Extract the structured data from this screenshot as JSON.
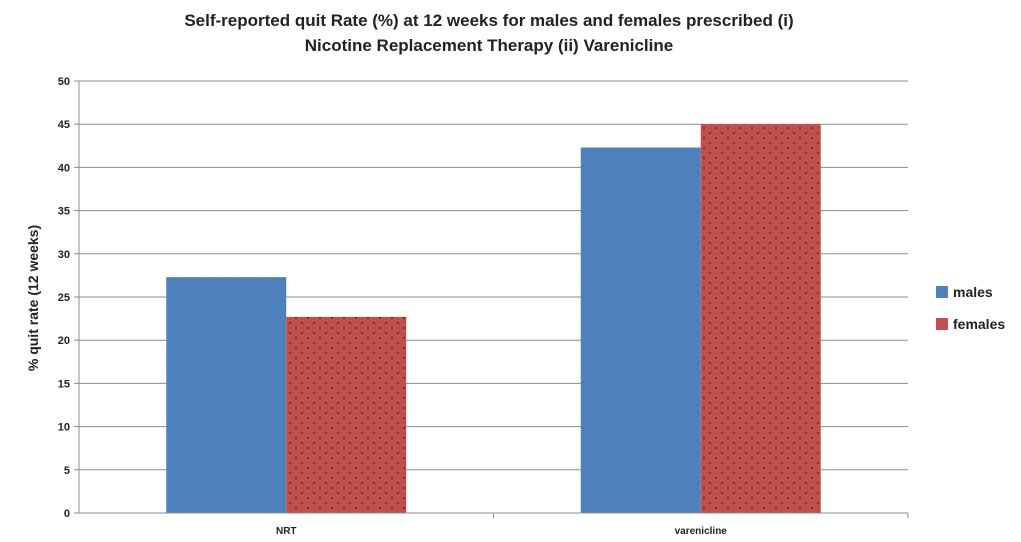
{
  "chart_data": {
    "type": "bar",
    "title_lines": [
      "Self-reported quit Rate (%) at 12 weeks for males and females prescribed (i)",
      "Nicotine Replacement Therapy (ii) Varenicline"
    ],
    "categories": [
      "NRT",
      "varenicline"
    ],
    "series": [
      {
        "name": "males",
        "values": [
          27.3,
          42.3
        ],
        "color": "#4f81bd"
      },
      {
        "name": "females",
        "values": [
          22.7,
          45.0
        ],
        "color": "#c0504d"
      }
    ],
    "xlabel": "",
    "ylabel": "% quit rate (12 weeks)",
    "ylim": [
      0,
      50
    ],
    "yticks": [
      "0",
      "5",
      "10",
      "15",
      "20",
      "25",
      "30",
      "35",
      "40",
      "45",
      "50"
    ],
    "grid": true,
    "legend_position": "right",
    "colors": {
      "gridline": "#8c8c8c",
      "axis": "#8c8c8c",
      "text": "#222222"
    }
  }
}
